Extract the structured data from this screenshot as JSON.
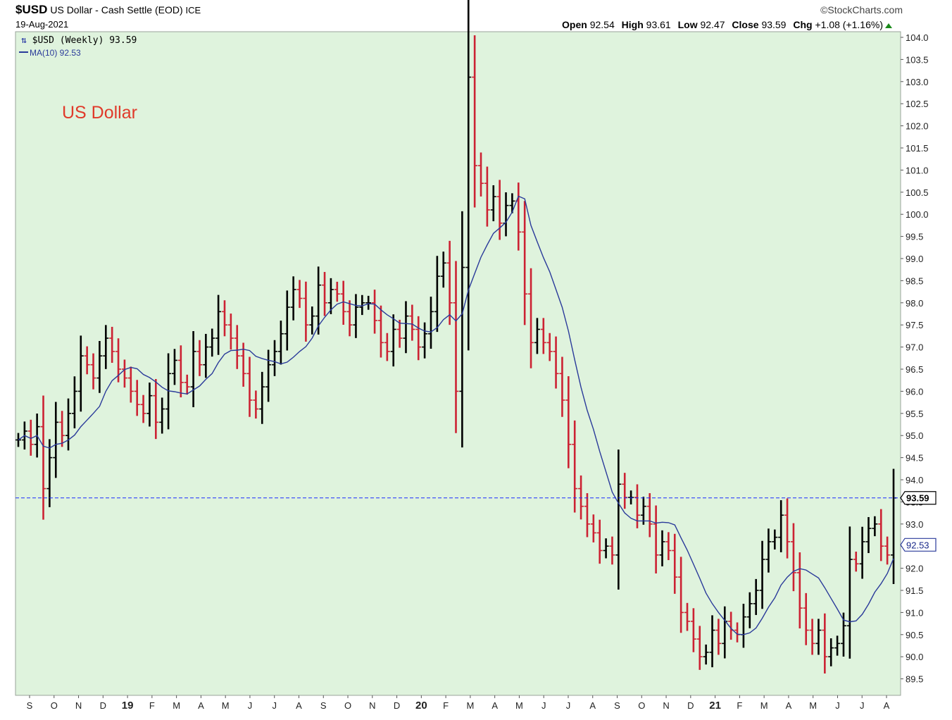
{
  "header": {
    "symbol": "$USD",
    "description": "US Dollar - Cash Settle (EOD)",
    "exchange": "ICE",
    "date": "19-Aug-2021",
    "brand": "StockCharts.com",
    "open_label": "Open",
    "open": "92.54",
    "high_label": "High",
    "high": "93.61",
    "low_label": "Low",
    "low": "92.47",
    "close_label": "Close",
    "close": "93.59",
    "chg_label": "Chg",
    "chg": "+1.08 (+1.16%)"
  },
  "legend": {
    "series": "$USD (Weekly) 93.59",
    "ma": "MA(10) 92.53"
  },
  "annotation": "US Dollar",
  "colors": {
    "plot_bg": "#dff3dd",
    "up_bar": "#000000",
    "down_bar": "#cc2233",
    "ma_line": "#2a3a9a",
    "last_price_line": "#1a2aff",
    "chg_arrow": "#1a8a1a"
  },
  "chart_data": {
    "type": "ohlc",
    "y_axis": {
      "min": 89.0,
      "max": 104.0,
      "ticks": [
        "89.5",
        "90.0",
        "90.5",
        "91.0",
        "91.5",
        "92.0",
        "92.5",
        "93.0",
        "93.5",
        "94.0",
        "94.5",
        "95.0",
        "95.5",
        "96.0",
        "96.5",
        "97.0",
        "97.5",
        "98.0",
        "98.5",
        "99.0",
        "99.5",
        "100.0",
        "100.5",
        "101.0",
        "101.5",
        "102.0",
        "102.5",
        "103.0",
        "103.5",
        "104.0"
      ],
      "side": "right"
    },
    "x_axis_labels": [
      "S",
      "O",
      "N",
      "D",
      "19",
      "F",
      "M",
      "A",
      "M",
      "J",
      "J",
      "A",
      "S",
      "O",
      "N",
      "D",
      "20",
      "F",
      "M",
      "A",
      "M",
      "J",
      "J",
      "A",
      "S",
      "O",
      "N",
      "D",
      "21",
      "F",
      "M",
      "A",
      "M",
      "J",
      "J",
      "A"
    ],
    "last_price_label": "93.59",
    "ma_last_label": "92.53",
    "closes": [
      94.9,
      95.1,
      94.8,
      95.2,
      93.8,
      94.5,
      95.3,
      95.0,
      95.5,
      96.0,
      96.8,
      96.6,
      96.3,
      96.8,
      97.2,
      96.9,
      96.5,
      96.3,
      96.0,
      95.7,
      95.5,
      95.9,
      95.3,
      95.6,
      96.4,
      96.7,
      96.2,
      96.1,
      96.9,
      96.6,
      97.0,
      97.2,
      97.8,
      97.5,
      97.2,
      96.8,
      96.4,
      95.8,
      95.6,
      96.1,
      96.6,
      96.9,
      97.3,
      97.9,
      98.3,
      98.1,
      97.5,
      97.7,
      98.4,
      98.0,
      98.3,
      98.2,
      97.8,
      97.5,
      97.9,
      98.0,
      98.0,
      97.6,
      97.1,
      96.9,
      97.4,
      97.2,
      97.7,
      97.4,
      97.0,
      97.3,
      97.8,
      98.6,
      98.9,
      98.0,
      96.0,
      98.8,
      103.1,
      101.1,
      100.7,
      100.1,
      100.4,
      99.8,
      100.2,
      100.3,
      99.6,
      98.2,
      97.1,
      97.4,
      97.1,
      96.9,
      96.4,
      95.8,
      94.8,
      93.8,
      93.4,
      93.0,
      92.8,
      92.4,
      92.5,
      92.3,
      93.9,
      93.6,
      93.6,
      93.2,
      93.4,
      93.0,
      92.3,
      92.6,
      92.4,
      91.8,
      91.0,
      90.8,
      90.4,
      90.0,
      90.1,
      90.6,
      90.3,
      90.8,
      90.6,
      90.5,
      90.9,
      91.2,
      91.5,
      92.2,
      92.6,
      92.7,
      93.2,
      92.6,
      91.9,
      91.1,
      90.6,
      90.3,
      90.6,
      90.0,
      90.2,
      90.3,
      90.7,
      92.2,
      92.1,
      92.6,
      92.9,
      93.0,
      92.5,
      92.3,
      93.59
    ],
    "ma10_sample": [
      95.2,
      95.0,
      95.4,
      96.5,
      96.0,
      95.9,
      96.4,
      96.9,
      97.2,
      97.0,
      97.7,
      98.1,
      97.9,
      97.4,
      97.3,
      97.5,
      100.2,
      97.2,
      93.8,
      93.0,
      91.0,
      90.4,
      91.7,
      90.7,
      92.53
    ],
    "ma_label": "MA(10)"
  }
}
